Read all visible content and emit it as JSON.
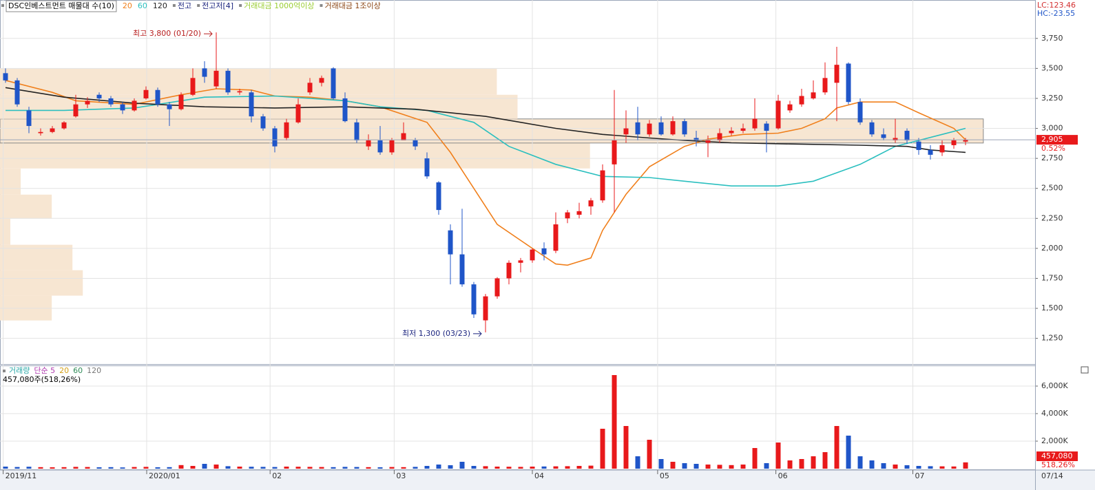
{
  "chart_data": {
    "type": "candlestick",
    "title": "DSC인베스트먼트 매물대 수(10)",
    "legend_extra": [
      {
        "name": "전고",
        "color": "#1a237e"
      },
      {
        "name": "전고저[4]",
        "color": "#1a237e"
      },
      {
        "name": "거래대금 1000억이상",
        "color": "#9acd32"
      },
      {
        "name": "거래대금 1조이상",
        "color": "#8b4513"
      }
    ],
    "lc": "LC:123.46",
    "hc": "HC:-23.55",
    "up_color": "#e8191b",
    "down_color": "#1f55c8",
    "xlim": [
      -0.47,
      87.94
    ],
    "xticks": [
      {
        "value": -0.2,
        "label": "2019/11"
      },
      {
        "value": 12.06,
        "label": "2020/01"
      },
      {
        "value": 22.6,
        "label": "02"
      },
      {
        "value": 33.2,
        "label": "03"
      },
      {
        "value": 45,
        "label": "04"
      },
      {
        "value": 55.7,
        "label": "05"
      },
      {
        "value": 65.8,
        "label": "06"
      },
      {
        "value": 77.5,
        "label": "07"
      }
    ],
    "x_end_label": "07/14",
    "ylim": [
      1030,
      4070
    ],
    "yticks": [
      {
        "value": 1250,
        "label": "1,250"
      },
      {
        "value": 1500,
        "label": "1,500"
      },
      {
        "value": 1750,
        "label": "1,750"
      },
      {
        "value": 2000,
        "label": "2,000"
      },
      {
        "value": 2250,
        "label": "2,250"
      },
      {
        "value": 2500,
        "label": "2,500"
      },
      {
        "value": 2750,
        "label": "2,750"
      },
      {
        "value": 3000,
        "label": "3,000"
      },
      {
        "value": 3250,
        "label": "3,250"
      },
      {
        "value": 3500,
        "label": "3,500"
      },
      {
        "value": 3750,
        "label": "3,750"
      }
    ],
    "grid": true,
    "ohlc": [
      [
        3460,
        3500,
        3380,
        3400
      ],
      [
        3400,
        3420,
        3180,
        3200
      ],
      [
        3150,
        3180,
        2960,
        3020
      ],
      [
        2960,
        3000,
        2940,
        2970
      ],
      [
        2970,
        3020,
        2960,
        3000
      ],
      [
        3000,
        3060,
        2990,
        3050
      ],
      [
        3100,
        3280,
        3090,
        3200
      ],
      [
        3200,
        3260,
        3170,
        3230
      ],
      [
        3280,
        3300,
        3220,
        3250
      ],
      [
        3250,
        3270,
        3180,
        3200
      ],
      [
        3200,
        3220,
        3120,
        3150
      ],
      [
        3150,
        3250,
        3140,
        3230
      ],
      [
        3250,
        3350,
        3240,
        3320
      ],
      [
        3320,
        3340,
        3180,
        3200
      ],
      [
        3200,
        3220,
        3020,
        3160
      ],
      [
        3160,
        3300,
        3150,
        3280
      ],
      [
        3280,
        3500,
        3270,
        3420
      ],
      [
        3500,
        3560,
        3380,
        3430
      ],
      [
        3350,
        3800,
        3330,
        3480
      ],
      [
        3480,
        3500,
        3280,
        3300
      ],
      [
        3300,
        3330,
        3280,
        3310
      ],
      [
        3300,
        3320,
        3050,
        3100
      ],
      [
        3100,
        3120,
        2980,
        3000
      ],
      [
        3000,
        3020,
        2800,
        2850
      ],
      [
        2920,
        3080,
        2900,
        3050
      ],
      [
        3050,
        3250,
        3040,
        3200
      ],
      [
        3300,
        3420,
        3280,
        3380
      ],
      [
        3380,
        3440,
        3350,
        3420
      ],
      [
        3500,
        3510,
        3240,
        3250
      ],
      [
        3250,
        3300,
        3050,
        3060
      ],
      [
        3050,
        3080,
        2880,
        2900
      ],
      [
        2850,
        2950,
        2820,
        2900
      ],
      [
        2900,
        3020,
        2780,
        2800
      ],
      [
        2800,
        2920,
        2780,
        2900
      ],
      [
        2900,
        3050,
        2900,
        2960
      ],
      [
        2900,
        2920,
        2820,
        2850
      ],
      [
        2750,
        2800,
        2580,
        2600
      ],
      [
        2550,
        2560,
        2280,
        2320
      ],
      [
        2150,
        2200,
        1700,
        1950
      ],
      [
        1950,
        2330,
        1680,
        1700
      ],
      [
        1700,
        1720,
        1420,
        1450
      ],
      [
        1400,
        1620,
        1300,
        1600
      ],
      [
        1600,
        1760,
        1580,
        1750
      ],
      [
        1750,
        1900,
        1700,
        1880
      ],
      [
        1880,
        1920,
        1800,
        1900
      ],
      [
        1900,
        2000,
        1880,
        1990
      ],
      [
        2000,
        2050,
        1900,
        1950
      ],
      [
        1980,
        2300,
        1960,
        2200
      ],
      [
        2250,
        2320,
        2210,
        2300
      ],
      [
        2280,
        2380,
        2250,
        2310
      ],
      [
        2350,
        2420,
        2280,
        2400
      ],
      [
        2400,
        2700,
        2380,
        2650
      ],
      [
        2700,
        3320,
        2300,
        2900
      ],
      [
        2950,
        3150,
        2880,
        3000
      ],
      [
        3050,
        3180,
        2900,
        2950
      ],
      [
        2950,
        3070,
        2930,
        3040
      ],
      [
        3050,
        3100,
        2940,
        2950
      ],
      [
        2950,
        3100,
        2940,
        3060
      ],
      [
        3060,
        3080,
        2930,
        2950
      ],
      [
        2920,
        2980,
        2850,
        2900
      ],
      [
        2880,
        2940,
        2760,
        2900
      ],
      [
        2900,
        3000,
        2880,
        2960
      ],
      [
        2960,
        3010,
        2940,
        2980
      ],
      [
        2980,
        3040,
        2960,
        3000
      ],
      [
        3000,
        3250,
        2980,
        3080
      ],
      [
        3040,
        3060,
        2800,
        2980
      ],
      [
        3000,
        3280,
        2990,
        3230
      ],
      [
        3150,
        3230,
        3130,
        3200
      ],
      [
        3200,
        3330,
        3180,
        3270
      ],
      [
        3250,
        3400,
        3240,
        3300
      ],
      [
        3300,
        3550,
        3280,
        3420
      ],
      [
        3380,
        3680,
        3060,
        3530
      ],
      [
        3540,
        3550,
        3200,
        3220
      ],
      [
        3220,
        3250,
        3030,
        3050
      ],
      [
        3050,
        3070,
        2930,
        2950
      ],
      [
        2950,
        3000,
        2900,
        2920
      ],
      [
        2900,
        3080,
        2880,
        2920
      ],
      [
        2980,
        3000,
        2870,
        2900
      ],
      [
        2890,
        2920,
        2780,
        2820
      ],
      [
        2820,
        2860,
        2740,
        2780
      ],
      [
        2800,
        2900,
        2770,
        2860
      ],
      [
        2860,
        2920,
        2830,
        2900
      ],
      [
        2890,
        2920,
        2860,
        2905
      ]
    ],
    "series": [
      {
        "name": "20",
        "color": "#f07f1b",
        "x": [
          0,
          4,
          6,
          11,
          15,
          18,
          21,
          23,
          26,
          29,
          32,
          36,
          38,
          40,
          42,
          45,
          47,
          48,
          50,
          51,
          53,
          55,
          58,
          60,
          63,
          66,
          68,
          70,
          71,
          73,
          76,
          78,
          81,
          82
        ],
        "values": [
          3400,
          3300,
          3230,
          3200,
          3280,
          3330,
          3320,
          3270,
          3260,
          3230,
          3180,
          3050,
          2800,
          2500,
          2200,
          2000,
          1870,
          1860,
          1920,
          2150,
          2450,
          2680,
          2850,
          2910,
          2950,
          2960,
          3000,
          3080,
          3170,
          3220,
          3220,
          3130,
          3000,
          2905
        ]
      },
      {
        "name": "60",
        "color": "#2abfbf",
        "x": [
          0,
          5,
          11,
          17,
          23,
          29,
          32,
          36,
          40,
          43,
          47,
          51,
          55,
          58,
          62,
          66,
          69,
          73,
          76,
          80,
          82
        ],
        "values": [
          3150,
          3150,
          3170,
          3260,
          3270,
          3230,
          3180,
          3150,
          3050,
          2850,
          2700,
          2600,
          2590,
          2560,
          2520,
          2520,
          2560,
          2700,
          2850,
          2950,
          3000
        ]
      },
      {
        "name": "120",
        "color": "#222222",
        "x": [
          0,
          5,
          11,
          17,
          23,
          29,
          35,
          41,
          47,
          51,
          55,
          58,
          62,
          67,
          73,
          77,
          79,
          82
        ],
        "values": [
          3340,
          3260,
          3210,
          3180,
          3170,
          3180,
          3160,
          3100,
          3000,
          2950,
          2920,
          2900,
          2880,
          2870,
          2860,
          2850,
          2820,
          2800
        ]
      }
    ],
    "volume_profile": {
      "color": "#f7e6d2",
      "bins": [
        1399,
        1606,
        1818,
        2030,
        2248,
        2448,
        2666,
        2878,
        3079,
        3280,
        3498
      ],
      "values": [
        0.05,
        0.08,
        0.07,
        0.01,
        0.05,
        0.02,
        0.57,
        0.95,
        0.5,
        0.48
      ]
    },
    "annotations": [
      "최고 3,800 (01/20)",
      "최저 1,300 (03/23)"
    ],
    "last_price": {
      "value": 2905,
      "label": "2,905",
      "change": "0.52%"
    },
    "volume": {
      "title": "거래량",
      "legend": [
        {
          "name": "단순 5",
          "color": "#b03ab0"
        },
        {
          "name": "20",
          "color": "#d4a017"
        },
        {
          "name": "60",
          "color": "#2e8b57"
        },
        {
          "name": "120",
          "color": "#777777"
        }
      ],
      "summary": "457,080주(518,26%)",
      "last_label": "457,080",
      "last_ratio": "518,26%",
      "ylim": [
        0,
        7450
      ],
      "yticks": [
        {
          "value": 2000,
          "label": "2,000K"
        },
        {
          "value": 4000,
          "label": "4,000K"
        },
        {
          "value": 6000,
          "label": "6,000K"
        }
      ],
      "values": [
        150,
        120,
        140,
        110,
        100,
        110,
        130,
        120,
        100,
        110,
        90,
        120,
        130,
        100,
        110,
        260,
        200,
        350,
        300,
        180,
        150,
        140,
        130,
        120,
        150,
        140,
        130,
        120,
        110,
        130,
        120,
        110,
        100,
        120,
        110,
        130,
        200,
        300,
        250,
        500,
        200,
        180,
        150,
        140,
        130,
        150,
        160,
        170,
        180,
        200,
        220,
        2900,
        6800,
        3100,
        900,
        2100,
        700,
        500,
        400,
        350,
        300,
        280,
        260,
        300,
        1500,
        400,
        1900,
        600,
        700,
        900,
        1200,
        3100,
        2400,
        900,
        600,
        400,
        300,
        250,
        200,
        180,
        170,
        160,
        457.08
      ]
    }
  }
}
